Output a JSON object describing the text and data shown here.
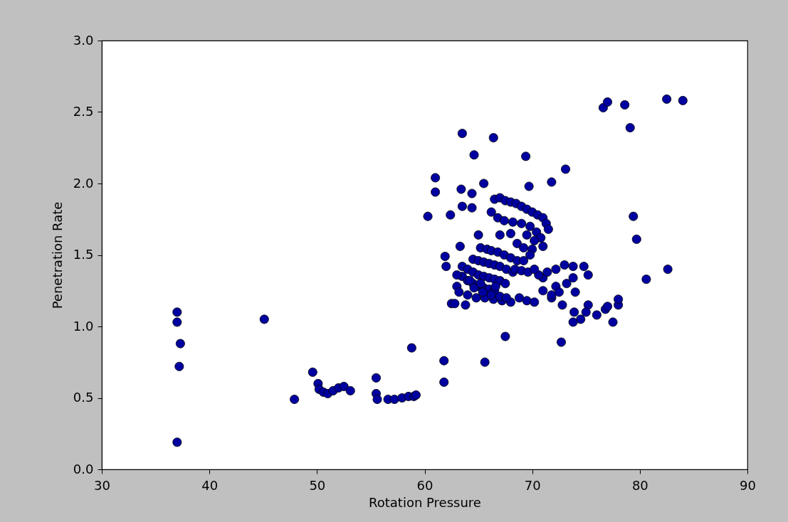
{
  "chart_data": {
    "type": "scatter",
    "xlabel": "Rotation Pressure",
    "ylabel": "Penetration Rate",
    "xlim": [
      30,
      90
    ],
    "ylim": [
      0,
      3
    ],
    "xticks": [
      30,
      40,
      50,
      60,
      70,
      80,
      90
    ],
    "yticks": [
      {
        "value": 0,
        "label": "0.0"
      },
      0.5,
      {
        "value": 1,
        "label": "1.0"
      },
      1.5,
      {
        "value": 2,
        "label": "2.0"
      },
      2.5,
      {
        "value": 3,
        "label": "3.0"
      }
    ],
    "grid": false,
    "marker": "circle",
    "series": [
      {
        "color": "#0000a0",
        "x": [
          37.0,
          37.0,
          37.3,
          37.2,
          37.0,
          45.1,
          47.9,
          49.6,
          50.1,
          50.2,
          50.6,
          51.0,
          51.5,
          52.0,
          52.5,
          53.1,
          55.5,
          55.5,
          55.6,
          56.6,
          57.2,
          57.9,
          58.5,
          59.0,
          59.2,
          58.8,
          61.8,
          61.8,
          65.6,
          67.5,
          72.7,
          60.3,
          61.0,
          61.0,
          63.5,
          66.4,
          64.6,
          69.4,
          73.1,
          71.8,
          65.5,
          69.7,
          63.4,
          64.4,
          62.4,
          63.5,
          64.4,
          65.0,
          61.9,
          63.3,
          76.6,
          77.0,
          78.6,
          79.1,
          82.5,
          84.0,
          79.4,
          79.7,
          82.6,
          80.6,
          77.5,
          78.0,
          78.0,
          76.0,
          76.8,
          77.0,
          75.2,
          75.0,
          74.5,
          73.8,
          73.9,
          74.0,
          74.8,
          75.2,
          72.8,
          71.8,
          72.2,
          71.0,
          66.5,
          67.0,
          67.5,
          68.0,
          68.5,
          69.0,
          69.5,
          70.0,
          70.5,
          71.0,
          71.3,
          71.5,
          66.2,
          66.8,
          67.4,
          68.2,
          69.0,
          69.8,
          70.4,
          70.8,
          67.0,
          68.0,
          69.5,
          70.2,
          71.0,
          68.6,
          69.2,
          70.0,
          65.2,
          65.8,
          66.2,
          66.8,
          67.4,
          68.0,
          68.6,
          69.2,
          69.8,
          64.5,
          65.0,
          65.5,
          66.0,
          66.5,
          67.0,
          67.6,
          68.2,
          63.5,
          64.0,
          64.5,
          65.0,
          65.5,
          66.0,
          66.5,
          67.0,
          67.5,
          63.0,
          63.5,
          64.0,
          64.5,
          65.0,
          65.5,
          66.0,
          66.5,
          63.2,
          64.0,
          64.8,
          65.6,
          66.4,
          67.2,
          68.0,
          62.5,
          62.8,
          63.8,
          64.6,
          65.4,
          66.2,
          67.0,
          68.8,
          69.5,
          70.2,
          71.0,
          71.8,
          72.5,
          73.2,
          73.8,
          70.6,
          71.4,
          72.2,
          73.0,
          73.8,
          68.4,
          69.0,
          69.6,
          70.2,
          62.0,
          63.0,
          64.2,
          65.2,
          66.6,
          67.6
        ],
        "values": [
          1.1,
          1.03,
          0.88,
          0.72,
          0.19,
          1.05,
          0.49,
          0.68,
          0.6,
          0.56,
          0.54,
          0.53,
          0.55,
          0.57,
          0.58,
          0.55,
          0.64,
          0.53,
          0.49,
          0.49,
          0.49,
          0.5,
          0.51,
          0.51,
          0.52,
          0.85,
          0.76,
          0.61,
          0.75,
          0.93,
          0.89,
          1.77,
          2.04,
          1.94,
          2.35,
          2.32,
          2.2,
          2.19,
          2.1,
          2.01,
          2.0,
          1.98,
          1.96,
          1.93,
          1.78,
          1.84,
          1.83,
          1.64,
          1.49,
          1.56,
          2.53,
          2.57,
          2.55,
          2.39,
          2.59,
          2.58,
          1.77,
          1.61,
          1.4,
          1.33,
          1.03,
          1.15,
          1.19,
          1.08,
          1.12,
          1.14,
          1.15,
          1.1,
          1.05,
          1.03,
          1.1,
          1.24,
          1.42,
          1.36,
          1.15,
          1.2,
          1.28,
          1.34,
          1.89,
          1.9,
          1.88,
          1.87,
          1.86,
          1.84,
          1.82,
          1.8,
          1.78,
          1.76,
          1.72,
          1.68,
          1.8,
          1.76,
          1.74,
          1.73,
          1.72,
          1.7,
          1.66,
          1.62,
          1.64,
          1.65,
          1.64,
          1.6,
          1.56,
          1.58,
          1.55,
          1.54,
          1.55,
          1.54,
          1.53,
          1.52,
          1.5,
          1.48,
          1.46,
          1.46,
          1.5,
          1.47,
          1.46,
          1.45,
          1.44,
          1.43,
          1.42,
          1.4,
          1.38,
          1.42,
          1.4,
          1.38,
          1.36,
          1.35,
          1.34,
          1.33,
          1.32,
          1.3,
          1.28,
          1.35,
          1.32,
          1.3,
          1.28,
          1.27,
          1.26,
          1.25,
          1.24,
          1.22,
          1.2,
          1.2,
          1.19,
          1.18,
          1.17,
          1.16,
          1.16,
          1.15,
          1.27,
          1.24,
          1.22,
          1.21,
          1.2,
          1.18,
          1.17,
          1.25,
          1.22,
          1.24,
          1.3,
          1.34,
          1.36,
          1.38,
          1.4,
          1.43,
          1.42,
          1.4,
          1.39,
          1.38,
          1.4,
          1.42,
          1.36,
          1.32,
          1.3,
          1.28,
          1.2
        ]
      }
    ]
  }
}
